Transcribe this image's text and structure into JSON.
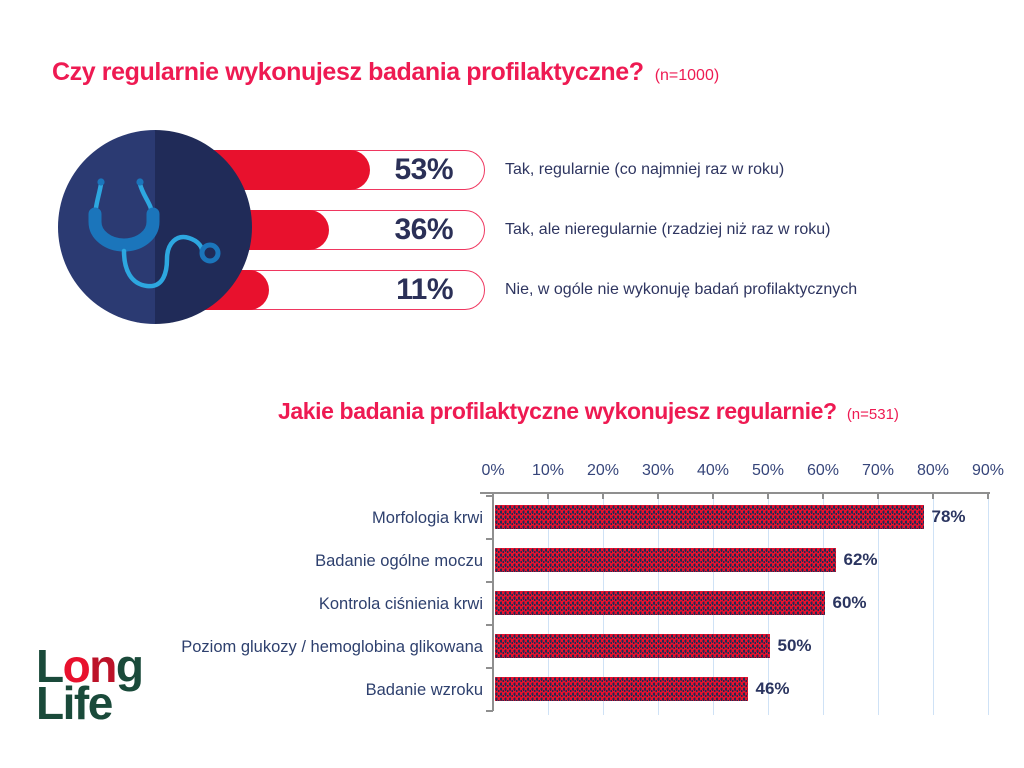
{
  "page": {
    "background": "#ffffff"
  },
  "colors": {
    "title_accent": "#ee1a52",
    "bar_red": "#e8112d",
    "navy_text": "#2b3560",
    "pill_outline": "#ef3760",
    "gridline_blue": "#cfe2f6",
    "axis_gray": "#8f8f8f",
    "badge_left_half": "#2b3a72",
    "badge_right_half": "#202b58",
    "stetho_dark_blue": "#1b75bb",
    "stetho_light_blue": "#2da7e0",
    "logo_green": "#1a4a3a",
    "logo_red": "#e8112d"
  },
  "chart_data": [
    {
      "type": "bar",
      "orientation": "horizontal",
      "title": "Czy regularnie wykonujesz badania profilaktyczne?",
      "sample": "(n=1000)",
      "unit": "%",
      "categories": [
        "Tak, regularnie (co najmniej raz w roku)",
        "Tak, ale nieregularnie (rzadziej niż raz w roku)",
        "Nie, w ogóle nie wykonuję badań profilaktycznych"
      ],
      "values": [
        53,
        36,
        11
      ],
      "value_labels": [
        "53%",
        "36%",
        "11%"
      ],
      "legend_position": "none",
      "grid": false
    },
    {
      "type": "bar",
      "orientation": "horizontal",
      "title": "Jakie badania profilaktyczne wykonujesz regularnie?",
      "sample": "(n=531)",
      "unit": "%",
      "categories": [
        "Morfologia krwi",
        "Badanie ogólne moczu",
        "Kontrola ciśnienia krwi",
        "Poziom glukozy / hemoglobina glikowana",
        "Badanie wzroku"
      ],
      "values": [
        78,
        62,
        60,
        50,
        46
      ],
      "value_labels": [
        "78%",
        "62%",
        "60%",
        "50%",
        "46%"
      ],
      "x_ticks": [
        "0%",
        "10%",
        "20%",
        "30%",
        "40%",
        "50%",
        "60%",
        "70%",
        "80%",
        "90%"
      ],
      "xlim": [
        0,
        90
      ],
      "grid": true,
      "legend_position": "none"
    }
  ],
  "icons": {
    "stethoscope": "stethoscope-icon"
  },
  "logo": {
    "line1": "Long",
    "line1_letters": [
      {
        "ch": "L",
        "tone": "green"
      },
      {
        "ch": "o",
        "tone": "red"
      },
      {
        "ch": "n",
        "tone": "darkred"
      },
      {
        "ch": "g",
        "tone": "green"
      }
    ],
    "line2": "Life"
  }
}
